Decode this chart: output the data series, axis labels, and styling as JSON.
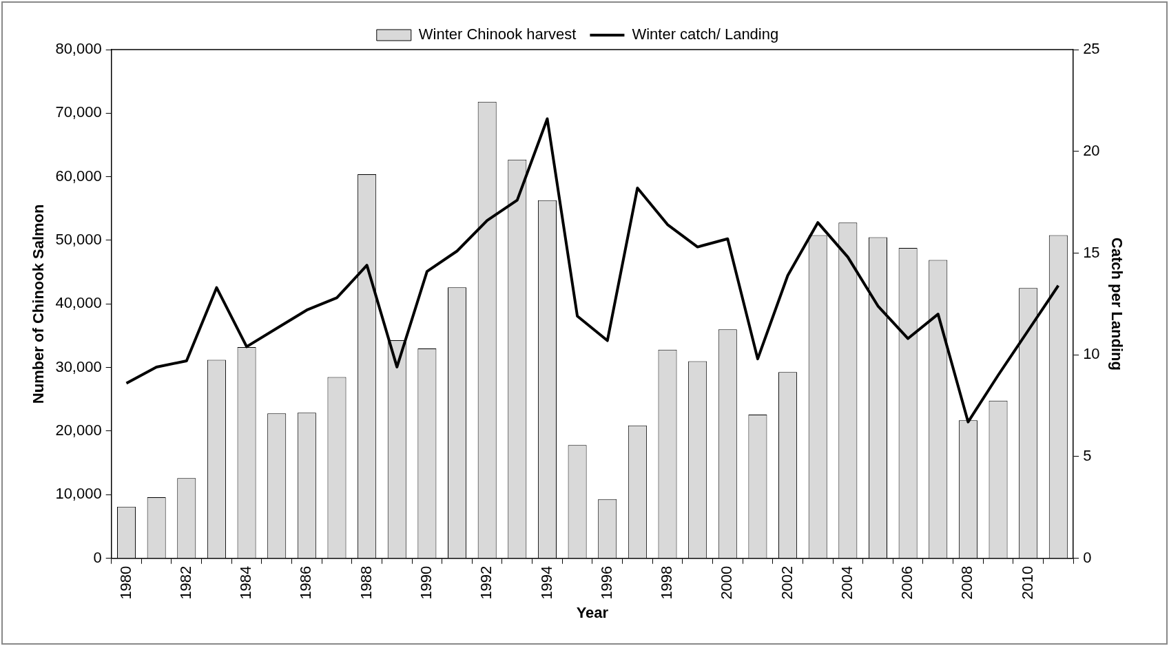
{
  "chart_data": {
    "type": "bar",
    "xlabel": "Year",
    "ylabel": "Number of Chinook Salmon",
    "y2label": "Catch per Landing",
    "categories": [
      "1980",
      null,
      "1982",
      null,
      "1984",
      null,
      "1986",
      null,
      "1988",
      null,
      "1990",
      null,
      "1992",
      null,
      "1994",
      null,
      "1996",
      null,
      "1998",
      null,
      "2000",
      null,
      "2002",
      null,
      "2004",
      null,
      "2006",
      null,
      "2008",
      null,
      "2010",
      null
    ],
    "series": [
      {
        "name": "Winter Chinook harvest",
        "color": "#d9d9d9",
        "values": [
          8100,
          9600,
          12600,
          31200,
          33200,
          22800,
          22900,
          28500,
          60400,
          34300,
          33000,
          42600,
          71800,
          62700,
          56300,
          17800,
          9300,
          20900,
          32800,
          31000,
          36000,
          22600,
          29300,
          50800,
          52800,
          50500,
          48800,
          46900,
          21700,
          24800,
          42500,
          50800
        ]
      },
      {
        "type": "line",
        "name": "Winter catch/ Landing",
        "color": "#000000",
        "axis": "y2",
        "values": [
          8.6,
          9.4,
          9.7,
          13.3,
          10.4,
          11.3,
          12.2,
          12.8,
          14.4,
          9.4,
          14.1,
          15.1,
          16.6,
          17.6,
          21.6,
          11.9,
          10.7,
          18.2,
          16.4,
          15.3,
          15.7,
          9.8,
          13.9,
          16.5,
          14.8,
          12.4,
          10.8,
          12.0,
          6.7,
          9.0,
          11.2,
          13.4
        ]
      }
    ],
    "ylim": [
      0,
      80000
    ],
    "yticks": [
      0,
      {
        "value": 10000,
        "label": "10,000"
      },
      {
        "value": 20000,
        "label": "20,000"
      },
      {
        "value": 30000,
        "label": "30,000"
      },
      {
        "value": 40000,
        "label": "40,000"
      },
      {
        "value": 50000,
        "label": "50,000"
      },
      {
        "value": 60000,
        "label": "60,000"
      },
      {
        "value": 70000,
        "label": "70,000"
      },
      {
        "value": 80000,
        "label": "80,000"
      }
    ],
    "y2lim": [
      0,
      25
    ],
    "y2ticks": [
      0,
      5,
      10,
      15,
      20,
      25
    ],
    "legend": "top",
    "marker": "none"
  }
}
